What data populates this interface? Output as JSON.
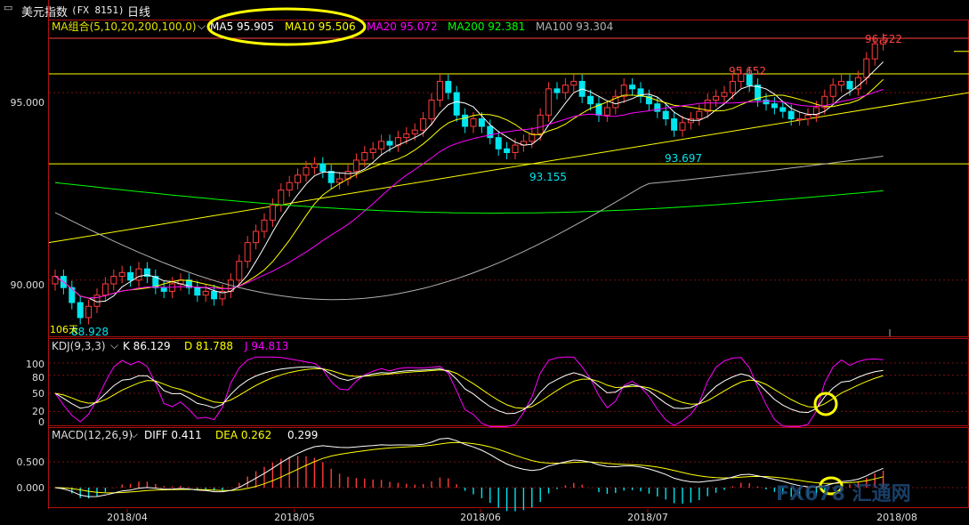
{
  "window": {
    "title": "美元指数",
    "code": "(FX 8151)",
    "period": "日线"
  },
  "colors": {
    "up": "#ff3b3b",
    "down": "#00e5ee",
    "ma5": "#ffffff",
    "ma10": "#ffff00",
    "ma20": "#ff00ff",
    "ma200": "#00ff00",
    "ma100": "#b0b0b0",
    "frame": "#b01010",
    "yellowline": "#ffff00"
  },
  "price_panel": {
    "legend_title": "MA组合(5,10,20,200,100,0)",
    "ma5_label": "MA5 95.905",
    "ma10_label": "MA10 95.506",
    "ma20_label": "MA20 95.072",
    "ma200_label": "MA200 92.381",
    "ma100_label": "MA100 93.304",
    "y_ticks": [
      "95.000",
      "90.000"
    ],
    "annotations": {
      "high_recent": "96.522",
      "high_june": "95.652",
      "low_july": "93.697",
      "low_june": "93.155",
      "low_april": "88.928",
      "bars_label": "106天"
    }
  },
  "kdj_panel": {
    "legend_title": "KDJ(9,3,3)",
    "k_label": "K 86.129",
    "d_label": "D 81.788",
    "j_label": "J 94.813",
    "y_ticks": [
      "100",
      "80",
      "50",
      "20",
      "0"
    ]
  },
  "macd_panel": {
    "legend_title": "MACD(12,26,9)",
    "diff_label": "DIFF 0.411",
    "dea_label": "DEA 0.262",
    "macd_value": "0.299",
    "y_ticks": [
      "0.500",
      "0.000"
    ]
  },
  "x_axis": {
    "labels": [
      "2018/04",
      "2018/05",
      "2018/06",
      "2018/07",
      "2018/08"
    ]
  },
  "watermark": "FX678 汇通网",
  "chart_data": {
    "type": "candlestick",
    "title": "美元指数 (FX 8151) 日线",
    "price_ylim": [
      88.5,
      96.9
    ],
    "x": [
      "2018/04",
      "2018/05",
      "2018/06",
      "2018/07",
      "2018/08"
    ],
    "price_path": [
      90.1,
      89.8,
      89.4,
      89.0,
      89.3,
      89.6,
      89.9,
      90.1,
      90.2,
      90.0,
      90.3,
      90.1,
      89.8,
      89.7,
      89.9,
      90.0,
      89.8,
      89.6,
      89.7,
      89.5,
      89.7,
      90.0,
      90.5,
      91.0,
      91.3,
      91.6,
      92.0,
      92.4,
      92.6,
      92.8,
      93.0,
      93.1,
      92.9,
      92.6,
      92.7,
      92.9,
      93.2,
      93.4,
      93.5,
      93.7,
      93.6,
      93.8,
      93.9,
      94.0,
      94.3,
      94.8,
      95.3,
      95.0,
      94.4,
      94.1,
      94.3,
      94.1,
      93.8,
      93.5,
      93.4,
      93.6,
      93.7,
      93.9,
      94.4,
      95.1,
      95.0,
      95.2,
      95.3,
      94.9,
      94.7,
      94.4,
      94.6,
      94.9,
      95.2,
      95.1,
      94.9,
      94.7,
      94.5,
      94.3,
      94.0,
      94.2,
      94.3,
      94.5,
      94.8,
      94.9,
      95.0,
      95.3,
      95.5,
      95.2,
      94.8,
      94.7,
      94.6,
      94.5,
      94.3,
      94.3,
      94.4,
      94.6,
      94.9,
      95.2,
      95.3,
      95.1,
      95.4,
      95.9,
      96.3,
      96.4
    ],
    "annotations": [
      {
        "label": "96.522",
        "value": 96.522
      },
      {
        "label": "95.652",
        "value": 95.652
      },
      {
        "label": "93.697",
        "value": 93.697
      },
      {
        "label": "93.155",
        "value": 93.155
      },
      {
        "label": "88.928",
        "value": 88.928
      }
    ],
    "ma_latest": {
      "MA5": 95.905,
      "MA10": 95.506,
      "MA20": 95.072,
      "MA200": 92.381,
      "MA100": 93.304
    },
    "kdj_latest": {
      "K": 86.129,
      "D": 81.788,
      "J": 94.813
    },
    "kdj_ylim": [
      0,
      100
    ],
    "macd_latest": {
      "DIFF": 0.411,
      "DEA": 0.262,
      "MACD": 0.299
    },
    "macd_ylim": [
      -0.35,
      0.85
    ]
  }
}
